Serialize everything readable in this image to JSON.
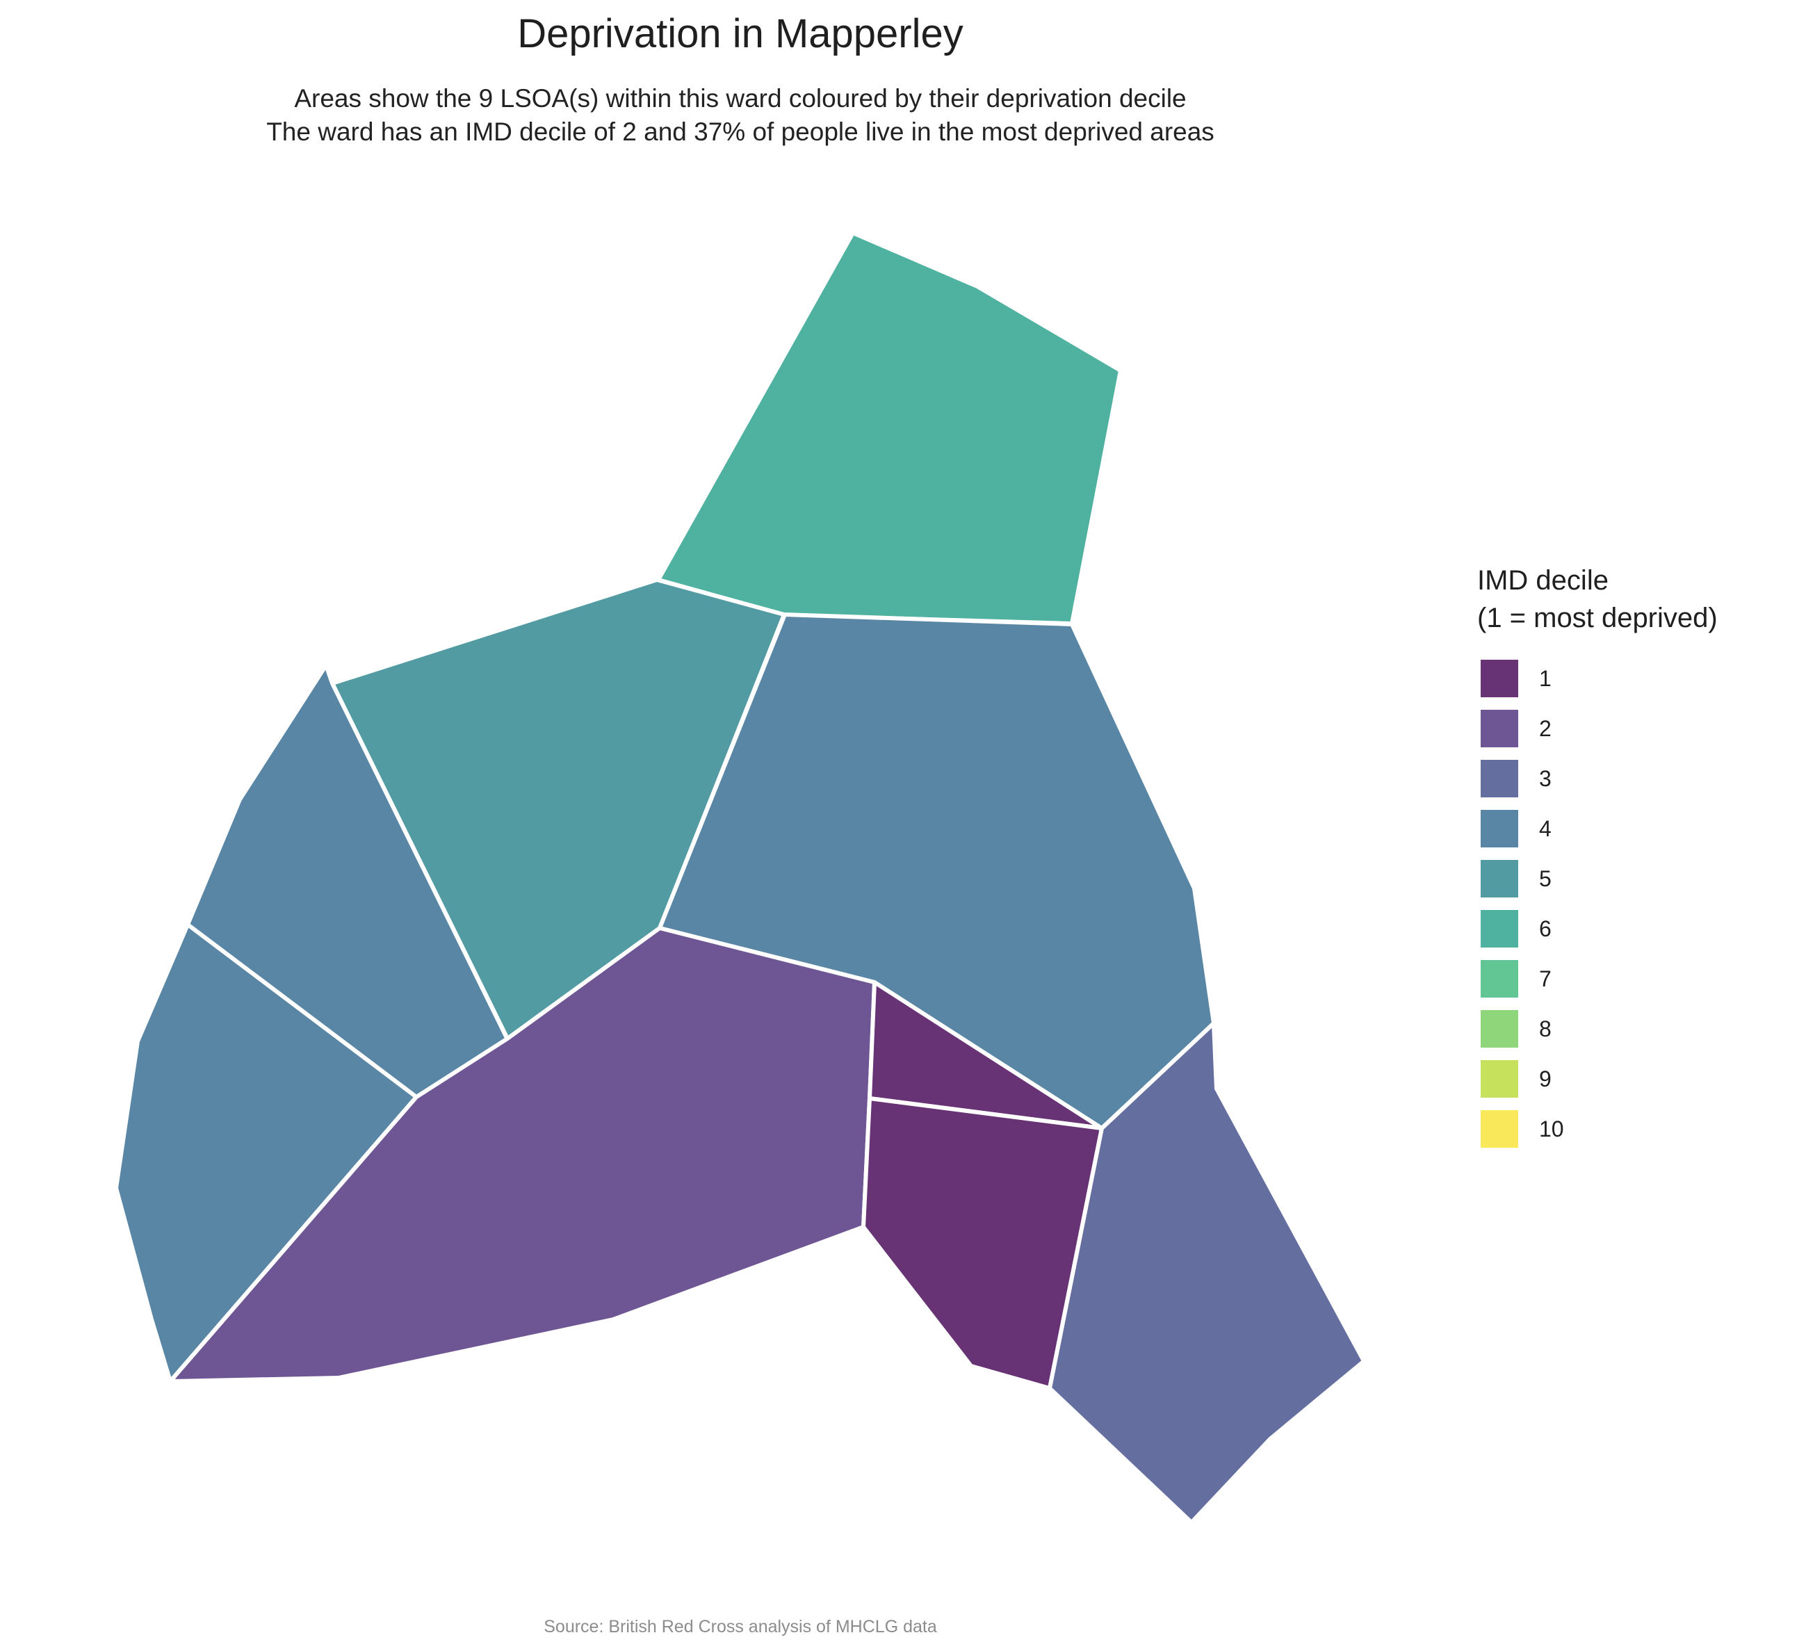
{
  "title": "Deprivation in Mapperley",
  "subtitle_line1": "Areas show the 9 LSOA(s) within this ward coloured by their deprivation decile",
  "subtitle_line2": "The ward has an IMD decile of 2 and 37% of people live in the most deprived areas",
  "caption": "Source: British Red Cross analysis of MHCLG data",
  "legend": {
    "title_line1": "IMD decile",
    "title_line2": "(1 = most deprived)",
    "items": [
      {
        "label": "1",
        "color": "#683375"
      },
      {
        "label": "2",
        "color": "#6e5593"
      },
      {
        "label": "3",
        "color": "#646e9f"
      },
      {
        "label": "4",
        "color": "#5886a4"
      },
      {
        "label": "5",
        "color": "#529ba2"
      },
      {
        "label": "6",
        "color": "#4fb1a0"
      },
      {
        "label": "7",
        "color": "#62c694"
      },
      {
        "label": "8",
        "color": "#8fd67a"
      },
      {
        "label": "9",
        "color": "#c6e15b"
      },
      {
        "label": "10",
        "color": "#f8e85a"
      }
    ]
  },
  "areas": [
    {
      "name": "north-6",
      "decile": 6
    },
    {
      "name": "upper-middle-5",
      "decile": 5
    },
    {
      "name": "east-4",
      "decile": 4
    },
    {
      "name": "west-upper-4",
      "decile": 4
    },
    {
      "name": "west-lower-4",
      "decile": 4
    },
    {
      "name": "centre-2",
      "decile": 2
    },
    {
      "name": "triangle-1",
      "decile": 1
    },
    {
      "name": "south-1",
      "decile": 1
    },
    {
      "name": "southeast-3",
      "decile": 3
    }
  ]
}
